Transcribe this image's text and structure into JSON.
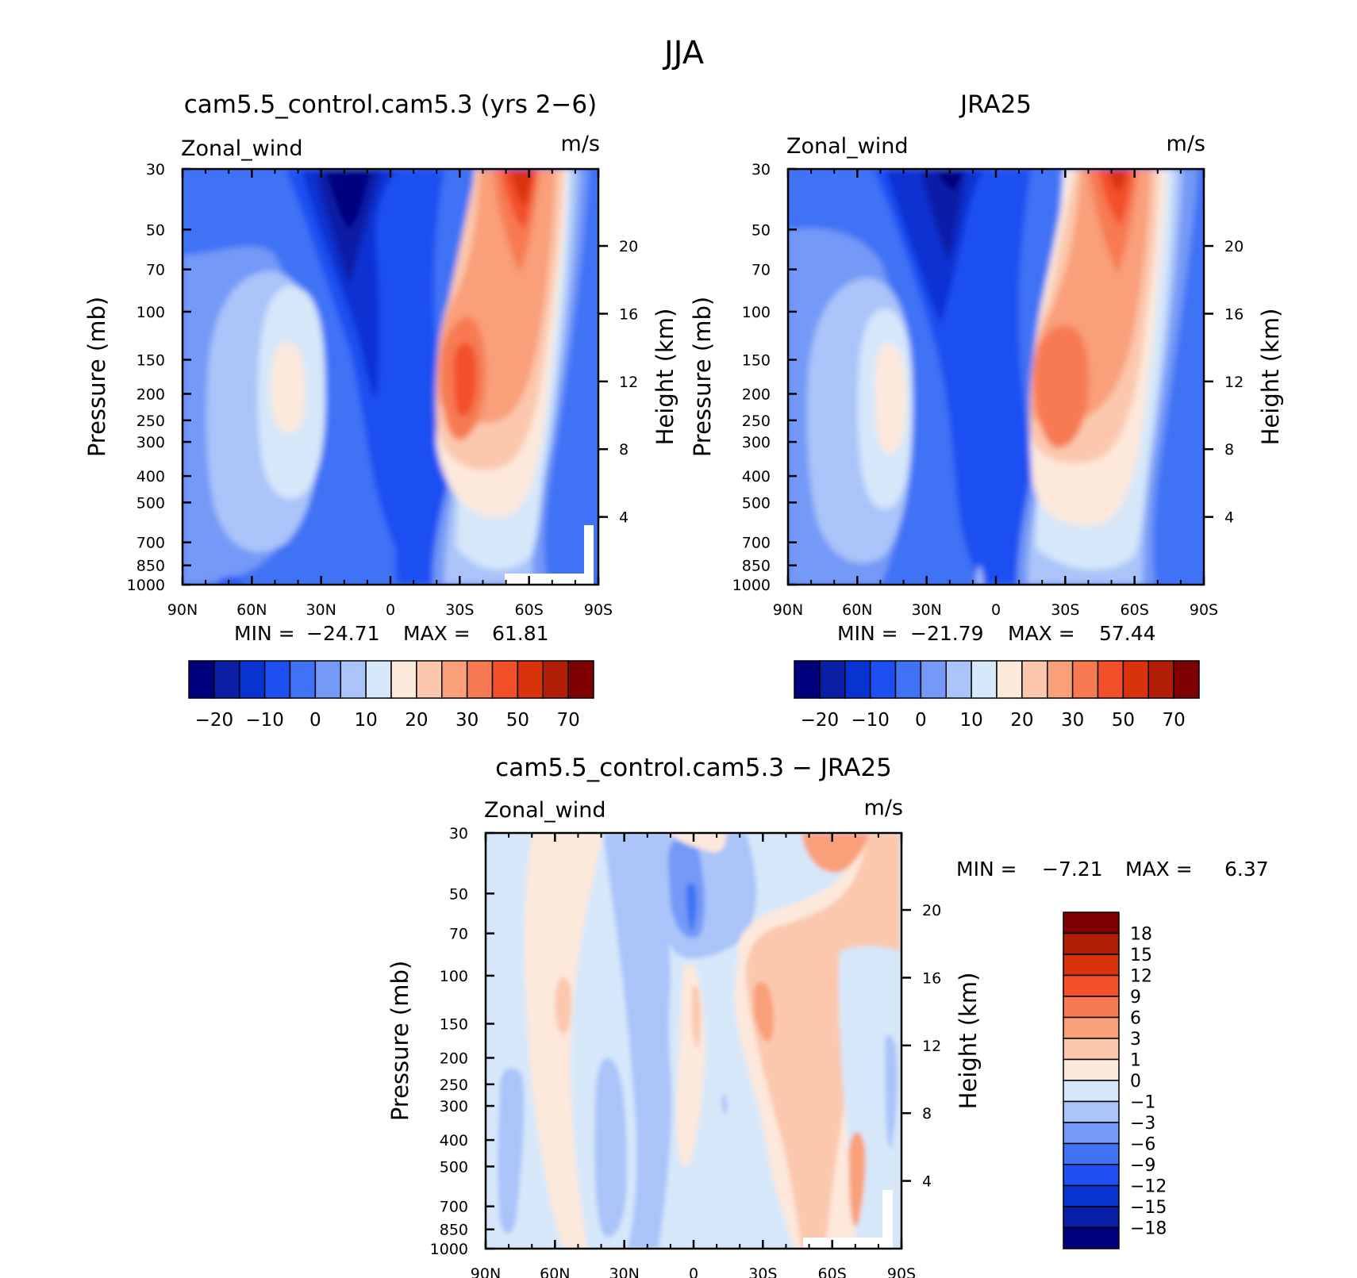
{
  "figure": {
    "title": "JJA"
  },
  "colors": {
    "main_scale": [
      "#00007f",
      "#0a1fa6",
      "#0733d1",
      "#1d4ff2",
      "#3f72f5",
      "#7599f7",
      "#aac4f9",
      "#d6e7fa",
      "#fde8dc",
      "#fbc7ad",
      "#f99f7a",
      "#f77a52",
      "#f3502a",
      "#d9330c",
      "#b21d06",
      "#7f0000"
    ],
    "diff_scale": [
      "#00007f",
      "#0a1fa6",
      "#0733d1",
      "#1d4ff2",
      "#3f72f5",
      "#7599f7",
      "#aac4f9",
      "#d6e7fa",
      "#fde8dc",
      "#fbc7ad",
      "#f99f7a",
      "#f77a52",
      "#f3502a",
      "#d9330c",
      "#b21d06",
      "#7f0000"
    ]
  },
  "chart_data": [
    {
      "type": "heatmap",
      "title": "cam5.5_control.cam5.3 (yrs 2−6)",
      "field_label": "Zonal_wind",
      "units": "m/s",
      "ylabel": "Pressure (mb)",
      "ylabel_right": "Height (km)",
      "x_ticks": [
        "90N",
        "60N",
        "30N",
        "0",
        "30S",
        "60S",
        "90S"
      ],
      "y_ticks": [
        30,
        50,
        70,
        100,
        150,
        200,
        250,
        300,
        400,
        500,
        700,
        850,
        1000
      ],
      "y_ticks_right": [
        20,
        16,
        12,
        8,
        4
      ],
      "ylim": [
        1000,
        30
      ],
      "log_scale_y": true,
      "stats": {
        "min_label": "MIN =",
        "min": "−24.71",
        "max_label": "MAX =",
        "max": "61.81"
      },
      "colorbar_labels": [
        "−20",
        "−10",
        "0",
        "10",
        "20",
        "30",
        "50",
        "70"
      ],
      "contour_levels": [
        -25,
        -20,
        -15,
        -10,
        -5,
        0,
        5,
        10,
        15,
        20,
        25,
        30,
        40,
        50,
        60,
        70
      ],
      "features": [
        {
          "name": "stratospheric easterly minimum",
          "lat": 18,
          "p": 30,
          "value": -24.7
        },
        {
          "name": "SH subtropical jet maximum",
          "lat": -30,
          "p": 200,
          "value": 61.8
        },
        {
          "name": "SH polar night jet",
          "lat": -60,
          "p": 30,
          "value": 55
        },
        {
          "name": "NH subtropical jet",
          "lat": 43,
          "p": 200,
          "value": 20
        }
      ]
    },
    {
      "type": "heatmap",
      "title": "JRA25",
      "field_label": "Zonal_wind",
      "units": "m/s",
      "ylabel": "Pressure (mb)",
      "ylabel_right": "Height (km)",
      "x_ticks": [
        "90N",
        "60N",
        "30N",
        "0",
        "30S",
        "60S",
        "90S"
      ],
      "y_ticks": [
        30,
        50,
        70,
        100,
        150,
        200,
        250,
        300,
        400,
        500,
        700,
        850,
        1000
      ],
      "y_ticks_right": [
        20,
        16,
        12,
        8,
        4
      ],
      "ylim": [
        1000,
        30
      ],
      "log_scale_y": true,
      "stats": {
        "min_label": "MIN =",
        "min": "−21.79",
        "max_label": "MAX =",
        "max": "57.44"
      },
      "colorbar_labels": [
        "−20",
        "−10",
        "0",
        "10",
        "20",
        "30",
        "50",
        "70"
      ],
      "contour_levels": [
        -25,
        -20,
        -15,
        -10,
        -5,
        0,
        5,
        10,
        15,
        20,
        25,
        30,
        40,
        50,
        60,
        70
      ],
      "features": [
        {
          "name": "stratospheric easterly minimum",
          "lat": 15,
          "p": 30,
          "value": -21.8
        },
        {
          "name": "SH subtropical jet maximum",
          "lat": -29,
          "p": 200,
          "value": 57.4
        },
        {
          "name": "SH polar night jet",
          "lat": -60,
          "p": 30,
          "value": 50
        },
        {
          "name": "NH subtropical jet",
          "lat": 44,
          "p": 200,
          "value": 20
        }
      ]
    },
    {
      "type": "heatmap",
      "title": "cam5.5_control.cam5.3 − JRA25",
      "field_label": "Zonal_wind",
      "units": "m/s",
      "ylabel": "Pressure (mb)",
      "ylabel_right": "Height (km)",
      "x_ticks": [
        "90N",
        "60N",
        "30N",
        "0",
        "30S",
        "60S",
        "90S"
      ],
      "y_ticks": [
        30,
        50,
        70,
        100,
        150,
        200,
        250,
        300,
        400,
        500,
        700,
        850,
        1000
      ],
      "y_ticks_right": [
        20,
        16,
        12,
        8,
        4
      ],
      "ylim": [
        1000,
        30
      ],
      "log_scale_y": true,
      "stats": {
        "min_label": "MIN =",
        "min": "−7.21",
        "max_label": "MAX =",
        "max": "6.37"
      },
      "colorbar_labels": [
        "18",
        "15",
        "12",
        "9",
        "6",
        "3",
        "1",
        "0",
        "−1",
        "−3",
        "−6",
        "−9",
        "−12",
        "−15",
        "−18"
      ],
      "contour_levels": [
        -18,
        -15,
        -12,
        -9,
        -6,
        -3,
        -1,
        0,
        1,
        3,
        6,
        9,
        12,
        15,
        18
      ],
      "features": [
        {
          "name": "equatorial stratospheric negative",
          "lat": 0,
          "p": 60,
          "value": -7.2
        },
        {
          "name": "SH high-latitude stratospheric positive",
          "lat": -65,
          "p": 40,
          "value": 6.4
        }
      ]
    }
  ]
}
